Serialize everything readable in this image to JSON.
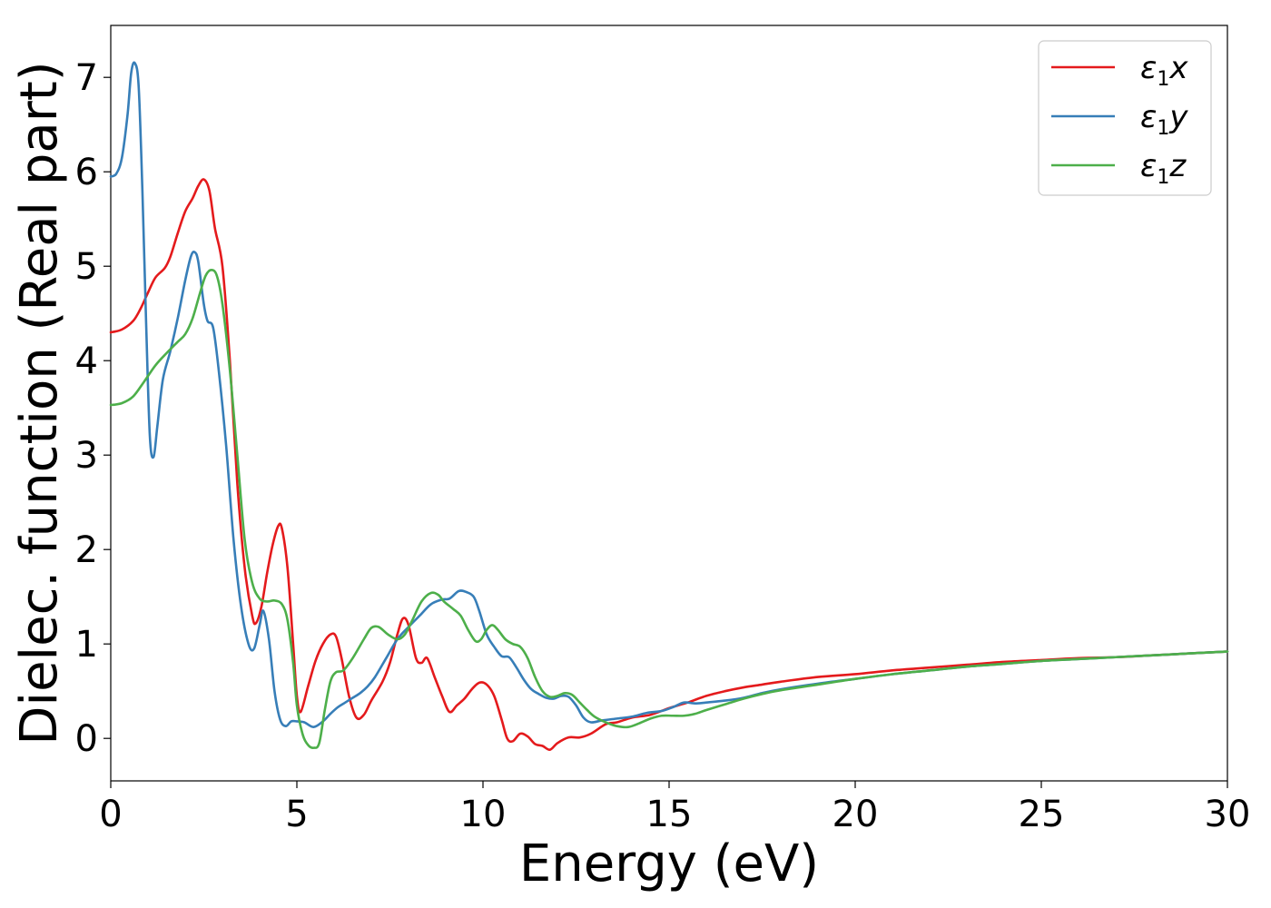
{
  "chart_data": {
    "type": "line",
    "xlabel": "Energy (eV)",
    "ylabel": "Dielec. function (Real part)",
    "xlim": [
      0,
      30
    ],
    "ylim": [
      -0.45,
      7.55
    ],
    "xticks": [
      0,
      5,
      10,
      15,
      20,
      25,
      30
    ],
    "xtick_labels": [
      "0",
      "5",
      "10",
      "15",
      "20",
      "25",
      "30"
    ],
    "yticks": [
      0,
      1,
      2,
      3,
      4,
      5,
      6,
      7
    ],
    "ytick_labels": [
      "0",
      "1",
      "2",
      "3",
      "4",
      "5",
      "6",
      "7"
    ],
    "grid": false,
    "legend_position": "top-right",
    "series": [
      {
        "name": "ε1x",
        "legend_base": "ε",
        "legend_sub": "1",
        "legend_suffix": "x",
        "color": "#e41a1c",
        "points": [
          [
            0,
            4.3
          ],
          [
            0.3,
            4.33
          ],
          [
            0.6,
            4.42
          ],
          [
            0.8,
            4.55
          ],
          [
            1.0,
            4.72
          ],
          [
            1.2,
            4.88
          ],
          [
            1.45,
            4.98
          ],
          [
            1.6,
            5.1
          ],
          [
            1.8,
            5.35
          ],
          [
            2.0,
            5.58
          ],
          [
            2.2,
            5.72
          ],
          [
            2.35,
            5.85
          ],
          [
            2.5,
            5.92
          ],
          [
            2.65,
            5.8
          ],
          [
            2.8,
            5.4
          ],
          [
            3.0,
            5.0
          ],
          [
            3.2,
            4.0
          ],
          [
            3.4,
            2.7
          ],
          [
            3.6,
            1.8
          ],
          [
            3.8,
            1.3
          ],
          [
            3.9,
            1.22
          ],
          [
            4.05,
            1.4
          ],
          [
            4.2,
            1.75
          ],
          [
            4.35,
            2.05
          ],
          [
            4.5,
            2.25
          ],
          [
            4.6,
            2.22
          ],
          [
            4.75,
            1.8
          ],
          [
            4.9,
            1.0
          ],
          [
            5.0,
            0.45
          ],
          [
            5.1,
            0.28
          ],
          [
            5.3,
            0.55
          ],
          [
            5.5,
            0.82
          ],
          [
            5.7,
            1.0
          ],
          [
            5.9,
            1.1
          ],
          [
            6.05,
            1.08
          ],
          [
            6.2,
            0.85
          ],
          [
            6.4,
            0.45
          ],
          [
            6.6,
            0.22
          ],
          [
            6.8,
            0.25
          ],
          [
            7.0,
            0.4
          ],
          [
            7.3,
            0.6
          ],
          [
            7.5,
            0.8
          ],
          [
            7.7,
            1.1
          ],
          [
            7.85,
            1.27
          ],
          [
            8.0,
            1.2
          ],
          [
            8.2,
            0.85
          ],
          [
            8.35,
            0.8
          ],
          [
            8.5,
            0.85
          ],
          [
            8.7,
            0.65
          ],
          [
            8.9,
            0.45
          ],
          [
            9.1,
            0.28
          ],
          [
            9.3,
            0.35
          ],
          [
            9.5,
            0.42
          ],
          [
            9.7,
            0.52
          ],
          [
            9.9,
            0.59
          ],
          [
            10.1,
            0.57
          ],
          [
            10.3,
            0.45
          ],
          [
            10.5,
            0.2
          ],
          [
            10.65,
            0.0
          ],
          [
            10.8,
            -0.03
          ],
          [
            11.0,
            0.05
          ],
          [
            11.2,
            0.02
          ],
          [
            11.4,
            -0.06
          ],
          [
            11.6,
            -0.08
          ],
          [
            11.8,
            -0.12
          ],
          [
            12.0,
            -0.05
          ],
          [
            12.3,
            0.01
          ],
          [
            12.6,
            0.01
          ],
          [
            12.9,
            0.05
          ],
          [
            13.3,
            0.15
          ],
          [
            13.6,
            0.17
          ],
          [
            14.0,
            0.22
          ],
          [
            14.5,
            0.25
          ],
          [
            15.0,
            0.32
          ],
          [
            15.5,
            0.38
          ],
          [
            16.0,
            0.45
          ],
          [
            16.5,
            0.5
          ],
          [
            17.0,
            0.54
          ],
          [
            17.5,
            0.57
          ],
          [
            18.0,
            0.6
          ],
          [
            19.0,
            0.65
          ],
          [
            20.0,
            0.68
          ],
          [
            21.0,
            0.72
          ],
          [
            22.0,
            0.75
          ],
          [
            23.0,
            0.78
          ],
          [
            24.0,
            0.81
          ],
          [
            25.0,
            0.83
          ],
          [
            26.0,
            0.85
          ],
          [
            27.0,
            0.86
          ],
          [
            28.0,
            0.88
          ],
          [
            29.0,
            0.9
          ],
          [
            30.0,
            0.92
          ]
        ]
      },
      {
        "name": "ε1y",
        "legend_base": "ε",
        "legend_sub": "1",
        "legend_suffix": "y",
        "color": "#377eb8",
        "points": [
          [
            0,
            5.95
          ],
          [
            0.15,
            5.98
          ],
          [
            0.3,
            6.15
          ],
          [
            0.45,
            6.6
          ],
          [
            0.55,
            7.05
          ],
          [
            0.65,
            7.15
          ],
          [
            0.75,
            6.9
          ],
          [
            0.85,
            5.8
          ],
          [
            0.95,
            4.4
          ],
          [
            1.05,
            3.2
          ],
          [
            1.15,
            2.98
          ],
          [
            1.25,
            3.3
          ],
          [
            1.4,
            3.8
          ],
          [
            1.6,
            4.1
          ],
          [
            1.8,
            4.45
          ],
          [
            2.0,
            4.85
          ],
          [
            2.15,
            5.1
          ],
          [
            2.25,
            5.15
          ],
          [
            2.35,
            5.05
          ],
          [
            2.5,
            4.6
          ],
          [
            2.6,
            4.42
          ],
          [
            2.75,
            4.35
          ],
          [
            2.9,
            3.9
          ],
          [
            3.1,
            3.1
          ],
          [
            3.3,
            2.1
          ],
          [
            3.5,
            1.4
          ],
          [
            3.7,
            1.0
          ],
          [
            3.85,
            0.95
          ],
          [
            4.0,
            1.2
          ],
          [
            4.1,
            1.35
          ],
          [
            4.25,
            1.05
          ],
          [
            4.4,
            0.5
          ],
          [
            4.55,
            0.2
          ],
          [
            4.7,
            0.13
          ],
          [
            4.85,
            0.18
          ],
          [
            5.0,
            0.18
          ],
          [
            5.2,
            0.17
          ],
          [
            5.45,
            0.12
          ],
          [
            5.7,
            0.18
          ],
          [
            5.9,
            0.26
          ],
          [
            6.1,
            0.33
          ],
          [
            6.3,
            0.38
          ],
          [
            6.5,
            0.43
          ],
          [
            6.7,
            0.48
          ],
          [
            6.9,
            0.55
          ],
          [
            7.1,
            0.65
          ],
          [
            7.4,
            0.85
          ],
          [
            7.7,
            1.05
          ],
          [
            8.0,
            1.18
          ],
          [
            8.3,
            1.3
          ],
          [
            8.6,
            1.42
          ],
          [
            8.9,
            1.47
          ],
          [
            9.1,
            1.48
          ],
          [
            9.35,
            1.56
          ],
          [
            9.55,
            1.55
          ],
          [
            9.75,
            1.5
          ],
          [
            9.9,
            1.35
          ],
          [
            10.1,
            1.1
          ],
          [
            10.3,
            0.97
          ],
          [
            10.5,
            0.87
          ],
          [
            10.7,
            0.86
          ],
          [
            10.9,
            0.75
          ],
          [
            11.1,
            0.62
          ],
          [
            11.3,
            0.52
          ],
          [
            11.5,
            0.47
          ],
          [
            11.7,
            0.43
          ],
          [
            11.9,
            0.42
          ],
          [
            12.1,
            0.45
          ],
          [
            12.3,
            0.44
          ],
          [
            12.5,
            0.35
          ],
          [
            12.7,
            0.22
          ],
          [
            12.9,
            0.17
          ],
          [
            13.2,
            0.19
          ],
          [
            13.6,
            0.21
          ],
          [
            14.0,
            0.23
          ],
          [
            14.4,
            0.27
          ],
          [
            14.8,
            0.29
          ],
          [
            15.1,
            0.33
          ],
          [
            15.4,
            0.38
          ],
          [
            15.7,
            0.37
          ],
          [
            16.0,
            0.38
          ],
          [
            16.5,
            0.4
          ],
          [
            17.0,
            0.43
          ],
          [
            17.5,
            0.48
          ],
          [
            18.0,
            0.52
          ],
          [
            19.0,
            0.58
          ],
          [
            20.0,
            0.63
          ],
          [
            21.0,
            0.68
          ],
          [
            22.0,
            0.72
          ],
          [
            23.0,
            0.76
          ],
          [
            24.0,
            0.79
          ],
          [
            25.0,
            0.82
          ],
          [
            26.0,
            0.84
          ],
          [
            27.0,
            0.86
          ],
          [
            28.0,
            0.88
          ],
          [
            29.0,
            0.9
          ],
          [
            30.0,
            0.92
          ]
        ]
      },
      {
        "name": "ε1z",
        "legend_base": "ε",
        "legend_sub": "1",
        "legend_suffix": "z",
        "color": "#4daf4a",
        "points": [
          [
            0,
            3.53
          ],
          [
            0.3,
            3.55
          ],
          [
            0.6,
            3.62
          ],
          [
            0.9,
            3.78
          ],
          [
            1.2,
            3.95
          ],
          [
            1.5,
            4.08
          ],
          [
            1.8,
            4.2
          ],
          [
            2.0,
            4.28
          ],
          [
            2.2,
            4.45
          ],
          [
            2.4,
            4.72
          ],
          [
            2.55,
            4.9
          ],
          [
            2.7,
            4.96
          ],
          [
            2.85,
            4.9
          ],
          [
            3.0,
            4.6
          ],
          [
            3.2,
            3.9
          ],
          [
            3.4,
            3.0
          ],
          [
            3.6,
            2.1
          ],
          [
            3.8,
            1.65
          ],
          [
            4.0,
            1.48
          ],
          [
            4.2,
            1.45
          ],
          [
            4.4,
            1.46
          ],
          [
            4.6,
            1.42
          ],
          [
            4.75,
            1.25
          ],
          [
            4.9,
            0.8
          ],
          [
            5.0,
            0.35
          ],
          [
            5.15,
            0.05
          ],
          [
            5.3,
            -0.07
          ],
          [
            5.45,
            -0.1
          ],
          [
            5.6,
            -0.05
          ],
          [
            5.75,
            0.3
          ],
          [
            5.9,
            0.6
          ],
          [
            6.05,
            0.7
          ],
          [
            6.25,
            0.72
          ],
          [
            6.5,
            0.85
          ],
          [
            6.8,
            1.05
          ],
          [
            7.0,
            1.17
          ],
          [
            7.2,
            1.18
          ],
          [
            7.45,
            1.1
          ],
          [
            7.7,
            1.05
          ],
          [
            7.9,
            1.1
          ],
          [
            8.1,
            1.25
          ],
          [
            8.35,
            1.45
          ],
          [
            8.6,
            1.54
          ],
          [
            8.8,
            1.52
          ],
          [
            8.95,
            1.45
          ],
          [
            9.2,
            1.37
          ],
          [
            9.4,
            1.3
          ],
          [
            9.6,
            1.15
          ],
          [
            9.8,
            1.03
          ],
          [
            9.95,
            1.05
          ],
          [
            10.1,
            1.15
          ],
          [
            10.25,
            1.2
          ],
          [
            10.4,
            1.15
          ],
          [
            10.6,
            1.05
          ],
          [
            10.8,
            1.0
          ],
          [
            11.0,
            0.97
          ],
          [
            11.2,
            0.85
          ],
          [
            11.4,
            0.65
          ],
          [
            11.6,
            0.5
          ],
          [
            11.8,
            0.44
          ],
          [
            12.0,
            0.45
          ],
          [
            12.2,
            0.48
          ],
          [
            12.4,
            0.46
          ],
          [
            12.6,
            0.38
          ],
          [
            12.8,
            0.3
          ],
          [
            13.0,
            0.23
          ],
          [
            13.3,
            0.17
          ],
          [
            13.6,
            0.13
          ],
          [
            13.9,
            0.12
          ],
          [
            14.2,
            0.16
          ],
          [
            14.5,
            0.21
          ],
          [
            14.8,
            0.24
          ],
          [
            15.1,
            0.24
          ],
          [
            15.4,
            0.24
          ],
          [
            15.7,
            0.26
          ],
          [
            16.0,
            0.3
          ],
          [
            16.5,
            0.36
          ],
          [
            17.0,
            0.42
          ],
          [
            17.5,
            0.47
          ],
          [
            18.0,
            0.51
          ],
          [
            19.0,
            0.57
          ],
          [
            20.0,
            0.63
          ],
          [
            21.0,
            0.68
          ],
          [
            22.0,
            0.72
          ],
          [
            23.0,
            0.76
          ],
          [
            24.0,
            0.79
          ],
          [
            25.0,
            0.82
          ],
          [
            26.0,
            0.84
          ],
          [
            27.0,
            0.86
          ],
          [
            28.0,
            0.88
          ],
          [
            29.0,
            0.9
          ],
          [
            30.0,
            0.92
          ]
        ]
      }
    ]
  }
}
